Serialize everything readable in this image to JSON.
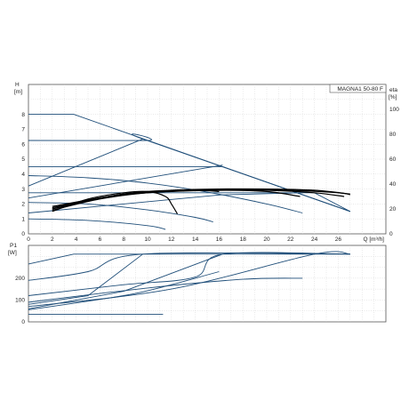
{
  "chart_data": [
    {
      "type": "line",
      "title": "MAGNA1 50-80 F",
      "ylabel_h": "H",
      "ylabel_h_unit": "[m]",
      "ylabel_eta": "eta",
      "ylabel_eta_unit": "[%]",
      "xlabel": "Q [m³/h]",
      "xlim": [
        0,
        30
      ],
      "ylim_h": [
        0,
        10
      ],
      "ylim_eta": [
        0,
        120
      ],
      "x_ticks": [
        0,
        2,
        4,
        6,
        8,
        10,
        12,
        14,
        16,
        18,
        20,
        22,
        24,
        26
      ],
      "h_ticks": [
        0,
        1,
        2,
        3,
        4,
        5,
        6,
        7,
        8
      ],
      "eta_ticks": [
        0,
        20,
        40,
        60,
        80,
        100
      ],
      "grid": true,
      "pump_curves": [
        {
          "points": [
            [
              0,
              8.0
            ],
            [
              3.8,
              8.0
            ],
            [
              27,
              1.5
            ]
          ]
        },
        {
          "points": [
            [
              0,
              6.25
            ],
            [
              10,
              6.25
            ],
            [
              9.6,
              6.35
            ],
            [
              27,
              1.5
            ]
          ]
        },
        {
          "points": [
            [
              0,
              4.5
            ],
            [
              16.3,
              4.5
            ],
            [
              27,
              1.5
            ]
          ]
        },
        {
          "points": [
            [
              0,
              3.9
            ],
            [
              5,
              3.75
            ],
            [
              10,
              3.4
            ],
            [
              15,
              2.8
            ],
            [
              20,
              2.0
            ],
            [
              23,
              1.4
            ]
          ]
        },
        {
          "points": [
            [
              0,
              2.75
            ],
            [
              24,
              2.75
            ],
            [
              27,
              1.5
            ]
          ]
        },
        {
          "points": [
            [
              0,
              2.1
            ],
            [
              5,
              2.0
            ],
            [
              10,
              1.6
            ],
            [
              14,
              1.1
            ],
            [
              15.5,
              0.8
            ]
          ]
        },
        {
          "points": [
            [
              0,
              1.0
            ],
            [
              5,
              0.9
            ],
            [
              10,
              0.55
            ],
            [
              11.5,
              0.3
            ]
          ]
        }
      ],
      "proportional_lines": [
        {
          "points": [
            [
              0,
              3.2
            ],
            [
              9.6,
              6.35
            ]
          ]
        },
        {
          "points": [
            [
              0,
              2.4
            ],
            [
              16.3,
              4.6
            ]
          ]
        },
        {
          "points": [
            [
              0,
              1.4
            ],
            [
              16,
              2.6
            ],
            [
              23,
              2.75
            ]
          ]
        }
      ],
      "efficiency_curves": [
        {
          "points": [
            [
              2,
              18
            ],
            [
              5,
              28
            ],
            [
              8,
              33
            ],
            [
              10,
              34
            ],
            [
              11.5,
              30
            ],
            [
              12,
              24
            ],
            [
              12.5,
              16
            ]
          ]
        },
        {
          "points": [
            [
              2,
              20
            ],
            [
              6,
              29
            ],
            [
              10,
              33
            ],
            [
              14,
              35
            ],
            [
              16,
              34
            ]
          ]
        },
        {
          "points": [
            [
              2,
              21
            ],
            [
              8,
              32
            ],
            [
              12,
              34
            ],
            [
              16,
              35
            ],
            [
              20,
              34
            ],
            [
              22.8,
              30
            ]
          ]
        },
        {
          "points": [
            [
              2,
              22
            ],
            [
              8,
              32
            ],
            [
              12,
              34.5
            ],
            [
              16,
              35
            ],
            [
              20,
              35
            ],
            [
              24,
              33
            ],
            [
              26.5,
              30
            ]
          ]
        },
        {
          "points": [
            [
              2,
              20
            ],
            [
              8,
              32
            ],
            [
              12,
              35
            ],
            [
              16,
              36
            ],
            [
              20,
              36
            ],
            [
              24,
              35
            ],
            [
              27,
              32
            ]
          ]
        },
        {
          "points": [
            [
              2,
              19
            ],
            [
              6,
              28
            ],
            [
              10,
              33
            ],
            [
              14,
              35
            ],
            [
              18,
              35.5
            ],
            [
              22,
              35
            ],
            [
              26,
              33
            ],
            [
              27,
              31.5
            ]
          ]
        }
      ]
    },
    {
      "type": "line",
      "ylabel": "P1",
      "ylabel_unit": "[W]",
      "xlim": [
        0,
        30
      ],
      "ylim": [
        0,
        350
      ],
      "y_ticks": [
        0,
        100,
        200
      ],
      "grid": true,
      "power_curves": [
        {
          "points": [
            [
              0,
              265
            ],
            [
              3.8,
              310
            ],
            [
              27,
              310
            ]
          ]
        },
        {
          "points": [
            [
              0,
              190
            ],
            [
              5,
              230
            ],
            [
              9.6,
              310
            ],
            [
              27,
              310
            ]
          ]
        },
        {
          "points": [
            [
              0,
              120
            ],
            [
              8,
              170
            ],
            [
              14,
              205
            ],
            [
              16.3,
              310
            ],
            [
              27,
              310
            ]
          ]
        },
        {
          "points": [
            [
              0,
              90
            ],
            [
              10,
              155
            ],
            [
              18,
              195
            ],
            [
              23,
              200
            ]
          ]
        },
        {
          "points": [
            [
              0,
              70
            ],
            [
              12,
              150
            ],
            [
              24,
              310
            ],
            [
              27,
              310
            ]
          ]
        },
        {
          "points": [
            [
              0,
              55
            ],
            [
              8,
              120
            ],
            [
              12,
              170
            ],
            [
              14,
              200
            ],
            [
              16,
              230
            ]
          ]
        },
        {
          "points": [
            [
              0,
              35
            ],
            [
              5,
              35
            ],
            [
              11.3,
              35
            ]
          ]
        },
        {
          "points": [
            [
              0,
              80
            ],
            [
              5,
              120
            ],
            [
              9.6,
              310
            ]
          ]
        },
        {
          "points": [
            [
              0,
              60
            ],
            [
              8,
              140
            ],
            [
              16.3,
              310
            ]
          ]
        }
      ]
    }
  ]
}
